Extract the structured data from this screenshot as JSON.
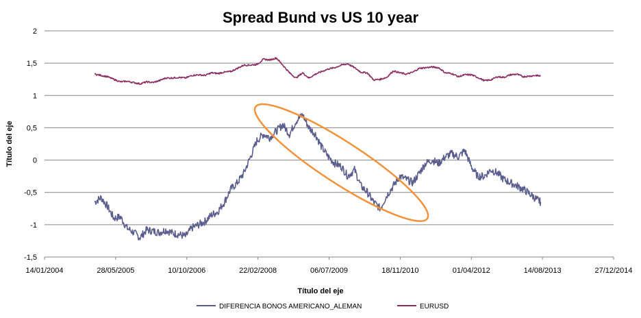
{
  "chart_data": {
    "type": "line",
    "title": "Spread Bund vs US 10 year",
    "xlabel": "Título del eje",
    "ylabel": "Título del eje",
    "xlim": [
      "2004-01-14",
      "2014-12-27"
    ],
    "ylim": [
      -1.5,
      2
    ],
    "x_ticks": [
      "14/01/2004",
      "28/05/2005",
      "10/10/2006",
      "22/02/2008",
      "06/07/2009",
      "18/11/2010",
      "01/04/2012",
      "14/08/2013",
      "27/12/2014"
    ],
    "y_ticks": [
      "2",
      "1,5",
      "1",
      "0,5",
      "0",
      "-0,5",
      "-1",
      "-1,5"
    ],
    "grid": "horizontal",
    "legend_position": "bottom",
    "series": [
      {
        "name": "DIFERENCIA BONOS AMERICANO_ALEMAN",
        "color": "#5a5e8e",
        "points": [
          [
            "2005-01-01",
            -0.65
          ],
          [
            "2005-02-15",
            -0.58
          ],
          [
            "2005-04-01",
            -0.72
          ],
          [
            "2005-05-15",
            -0.9
          ],
          [
            "2005-07-01",
            -0.88
          ],
          [
            "2005-08-15",
            -1.05
          ],
          [
            "2005-10-01",
            -1.12
          ],
          [
            "2005-11-15",
            -1.2
          ],
          [
            "2006-01-01",
            -1.08
          ],
          [
            "2006-02-15",
            -1.1
          ],
          [
            "2006-04-01",
            -1.12
          ],
          [
            "2006-05-15",
            -1.08
          ],
          [
            "2006-07-01",
            -1.13
          ],
          [
            "2006-08-15",
            -1.15
          ],
          [
            "2006-10-01",
            -1.18
          ],
          [
            "2006-11-15",
            -1.05
          ],
          [
            "2007-01-01",
            -1.0
          ],
          [
            "2007-02-15",
            -0.95
          ],
          [
            "2007-04-01",
            -0.85
          ],
          [
            "2007-05-15",
            -0.8
          ],
          [
            "2007-07-01",
            -0.65
          ],
          [
            "2007-08-15",
            -0.45
          ],
          [
            "2007-10-01",
            -0.35
          ],
          [
            "2007-11-15",
            -0.2
          ],
          [
            "2008-01-01",
            0.05
          ],
          [
            "2008-02-15",
            0.3
          ],
          [
            "2008-04-01",
            0.4
          ],
          [
            "2008-05-15",
            0.35
          ],
          [
            "2008-07-01",
            0.45
          ],
          [
            "2008-08-15",
            0.55
          ],
          [
            "2008-10-01",
            0.4
          ],
          [
            "2008-11-15",
            0.6
          ],
          [
            "2009-01-01",
            0.7
          ],
          [
            "2009-02-15",
            0.5
          ],
          [
            "2009-04-01",
            0.4
          ],
          [
            "2009-05-15",
            0.2
          ],
          [
            "2009-07-01",
            0.05
          ],
          [
            "2009-08-15",
            -0.05
          ],
          [
            "2009-10-01",
            -0.1
          ],
          [
            "2009-11-15",
            -0.25
          ],
          [
            "2010-01-01",
            -0.15
          ],
          [
            "2010-02-15",
            -0.4
          ],
          [
            "2010-04-01",
            -0.5
          ],
          [
            "2010-05-15",
            -0.65
          ],
          [
            "2010-07-01",
            -0.75
          ],
          [
            "2010-08-15",
            -0.55
          ],
          [
            "2010-10-01",
            -0.4
          ],
          [
            "2010-11-15",
            -0.25
          ],
          [
            "2011-01-01",
            -0.3
          ],
          [
            "2011-02-15",
            -0.35
          ],
          [
            "2011-04-01",
            -0.2
          ],
          [
            "2011-05-15",
            -0.05
          ],
          [
            "2011-07-01",
            0.0
          ],
          [
            "2011-08-15",
            -0.05
          ],
          [
            "2011-10-01",
            0.05
          ],
          [
            "2011-11-15",
            0.1
          ],
          [
            "2012-01-01",
            0.05
          ],
          [
            "2012-02-15",
            0.15
          ],
          [
            "2012-04-01",
            -0.1
          ],
          [
            "2012-05-15",
            -0.25
          ],
          [
            "2012-07-01",
            -0.25
          ],
          [
            "2012-08-15",
            -0.15
          ],
          [
            "2012-10-01",
            -0.2
          ],
          [
            "2012-11-15",
            -0.3
          ],
          [
            "2013-01-01",
            -0.35
          ],
          [
            "2013-02-15",
            -0.4
          ],
          [
            "2013-04-01",
            -0.45
          ],
          [
            "2013-05-15",
            -0.52
          ],
          [
            "2013-07-01",
            -0.6
          ],
          [
            "2013-08-01",
            -0.65
          ]
        ]
      },
      {
        "name": "EURUSD",
        "color": "#8b2d63",
        "points": [
          [
            "2005-01-01",
            1.33
          ],
          [
            "2005-02-15",
            1.31
          ],
          [
            "2005-04-01",
            1.29
          ],
          [
            "2005-05-15",
            1.25
          ],
          [
            "2005-07-01",
            1.21
          ],
          [
            "2005-08-15",
            1.22
          ],
          [
            "2005-10-01",
            1.2
          ],
          [
            "2005-11-15",
            1.18
          ],
          [
            "2006-01-01",
            1.21
          ],
          [
            "2006-02-15",
            1.2
          ],
          [
            "2006-04-01",
            1.23
          ],
          [
            "2006-05-15",
            1.27
          ],
          [
            "2006-07-01",
            1.27
          ],
          [
            "2006-08-15",
            1.28
          ],
          [
            "2006-10-01",
            1.27
          ],
          [
            "2006-11-15",
            1.31
          ],
          [
            "2007-01-01",
            1.32
          ],
          [
            "2007-02-15",
            1.31
          ],
          [
            "2007-04-01",
            1.35
          ],
          [
            "2007-05-15",
            1.34
          ],
          [
            "2007-07-01",
            1.36
          ],
          [
            "2007-08-15",
            1.37
          ],
          [
            "2007-10-01",
            1.42
          ],
          [
            "2007-11-15",
            1.47
          ],
          [
            "2008-01-01",
            1.47
          ],
          [
            "2008-02-15",
            1.48
          ],
          [
            "2008-04-01",
            1.56
          ],
          [
            "2008-05-15",
            1.55
          ],
          [
            "2008-07-01",
            1.58
          ],
          [
            "2008-08-15",
            1.47
          ],
          [
            "2008-10-01",
            1.35
          ],
          [
            "2008-11-15",
            1.27
          ],
          [
            "2009-01-01",
            1.35
          ],
          [
            "2009-02-15",
            1.27
          ],
          [
            "2009-04-01",
            1.33
          ],
          [
            "2009-05-15",
            1.37
          ],
          [
            "2009-07-01",
            1.41
          ],
          [
            "2009-08-15",
            1.43
          ],
          [
            "2009-10-01",
            1.47
          ],
          [
            "2009-11-15",
            1.49
          ],
          [
            "2010-01-01",
            1.43
          ],
          [
            "2010-02-15",
            1.36
          ],
          [
            "2010-04-01",
            1.35
          ],
          [
            "2010-05-15",
            1.24
          ],
          [
            "2010-07-01",
            1.25
          ],
          [
            "2010-08-15",
            1.28
          ],
          [
            "2010-10-01",
            1.38
          ],
          [
            "2010-11-15",
            1.35
          ],
          [
            "2011-01-01",
            1.33
          ],
          [
            "2011-02-15",
            1.36
          ],
          [
            "2011-04-01",
            1.42
          ],
          [
            "2011-05-15",
            1.43
          ],
          [
            "2011-07-01",
            1.44
          ],
          [
            "2011-08-15",
            1.43
          ],
          [
            "2011-10-01",
            1.35
          ],
          [
            "2011-11-15",
            1.34
          ],
          [
            "2012-01-01",
            1.29
          ],
          [
            "2012-02-15",
            1.32
          ],
          [
            "2012-04-01",
            1.32
          ],
          [
            "2012-05-15",
            1.28
          ],
          [
            "2012-07-01",
            1.23
          ],
          [
            "2012-08-15",
            1.24
          ],
          [
            "2012-10-01",
            1.29
          ],
          [
            "2012-11-15",
            1.28
          ],
          [
            "2013-01-01",
            1.32
          ],
          [
            "2013-02-15",
            1.33
          ],
          [
            "2013-04-01",
            1.29
          ],
          [
            "2013-05-15",
            1.3
          ],
          [
            "2013-07-01",
            1.31
          ],
          [
            "2013-08-01",
            1.3
          ]
        ]
      }
    ],
    "annotations": [
      {
        "type": "ellipse",
        "color": "#f4923c",
        "center": [
          "2009-10-01",
          -0.04
        ],
        "rx_days": 720,
        "ry": 0.32,
        "rotation_deg": 33
      }
    ]
  }
}
